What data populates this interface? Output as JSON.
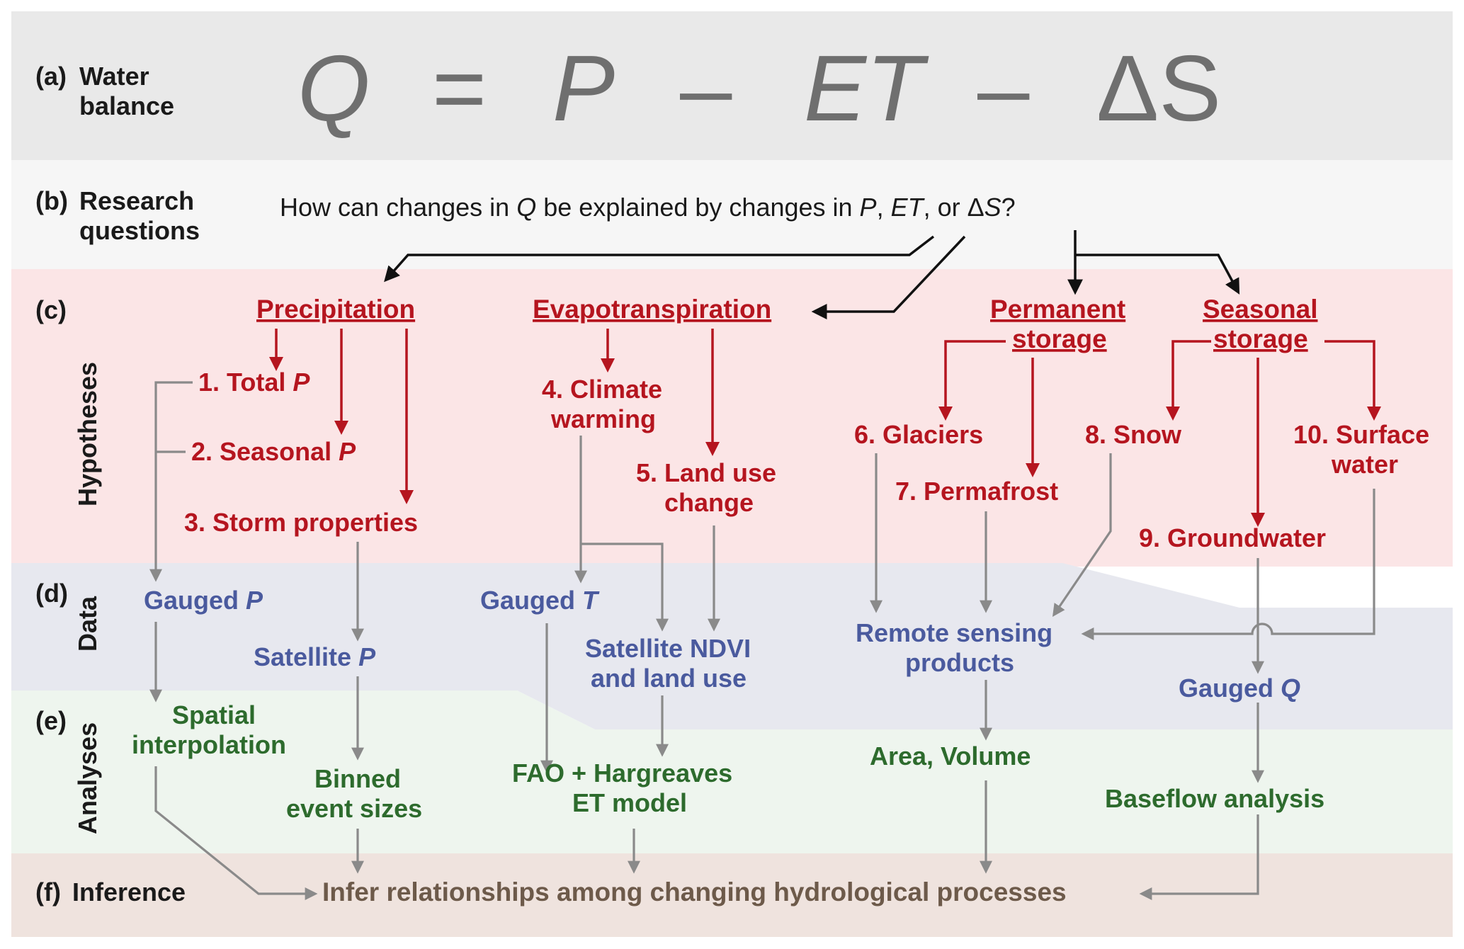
{
  "rows": {
    "a": {
      "letter": "(a)",
      "label_line1": "Water",
      "label_line2": "balance"
    },
    "b": {
      "letter": "(b)",
      "label_line1": "Research",
      "label_line2": "questions"
    },
    "c": {
      "letter": "(c)",
      "side_label": "Hypotheses"
    },
    "d": {
      "letter": "(d)",
      "side_label": "Data"
    },
    "e": {
      "letter": "(e)",
      "side_label": "Analyses"
    },
    "f": {
      "letter": "(f)",
      "label_line1": "Inference"
    }
  },
  "equation": {
    "q": "Q",
    "equals": "=",
    "p": "P",
    "minus1": "–",
    "et": "ET",
    "minus2": "–",
    "ds": "ΔS"
  },
  "question": {
    "prefix": "How can changes in ",
    "q": "Q",
    "mid": " be explained by changes in ",
    "p": "P",
    "comma": ", ",
    "et": "ET",
    "or": ", or Δ",
    "s": "S",
    "end": "?"
  },
  "categories": {
    "precipitation": "Precipitation",
    "evapotranspiration": "Evapotranspiration",
    "permanent_l1": "Permanent",
    "permanent_l2": "storage",
    "seasonal_l1": "Seasonal",
    "seasonal_l2": "storage"
  },
  "hypotheses": {
    "h1": {
      "text": "1. Total ",
      "var": "P"
    },
    "h2": {
      "text": "2. Seasonal ",
      "var": "P"
    },
    "h3": "3. Storm properties",
    "h4_l1": "4. Climate",
    "h4_l2": "warming",
    "h5_l1": "5. Land use",
    "h5_l2": "change",
    "h6": "6. Glaciers",
    "h7": "7. Permafrost",
    "h8": "8. Snow",
    "h9": "9. Groundwater",
    "h10_l1": "10. Surface",
    "h10_l2": "water"
  },
  "data": {
    "gauged_p": {
      "text": "Gauged ",
      "var": "P"
    },
    "satellite_p": {
      "text": "Satellite ",
      "var": "P"
    },
    "gauged_t": {
      "text": "Gauged ",
      "var": "T"
    },
    "ndvi_l1": "Satellite NDVI",
    "ndvi_l2": "and land use",
    "remote_l1": "Remote sensing",
    "remote_l2": "products",
    "gauged_q": {
      "text": "Gauged ",
      "var": "Q"
    }
  },
  "analyses": {
    "spatial_l1": "Spatial",
    "spatial_l2": "interpolation",
    "binned_l1": "Binned",
    "binned_l2": "event sizes",
    "fao_l1": "FAO + Hargreaves",
    "fao_l2": "ET model",
    "area": "Area, Volume",
    "baseflow": "Baseflow analysis"
  },
  "inference": "Infer relationships among changing hydrological processes",
  "colors": {
    "band_a": "#e9e9e9",
    "band_b": "#f6f6f6",
    "band_c": "#fbe5e6",
    "band_d": "#e7e8ef",
    "band_e": "#eef5ee",
    "band_f": "#efe3de",
    "red": "#b5151f",
    "blue": "#4a5a9e",
    "green": "#2d6b2d",
    "brown": "#6d5a4a",
    "grey_arrow": "#8a8a8a"
  }
}
